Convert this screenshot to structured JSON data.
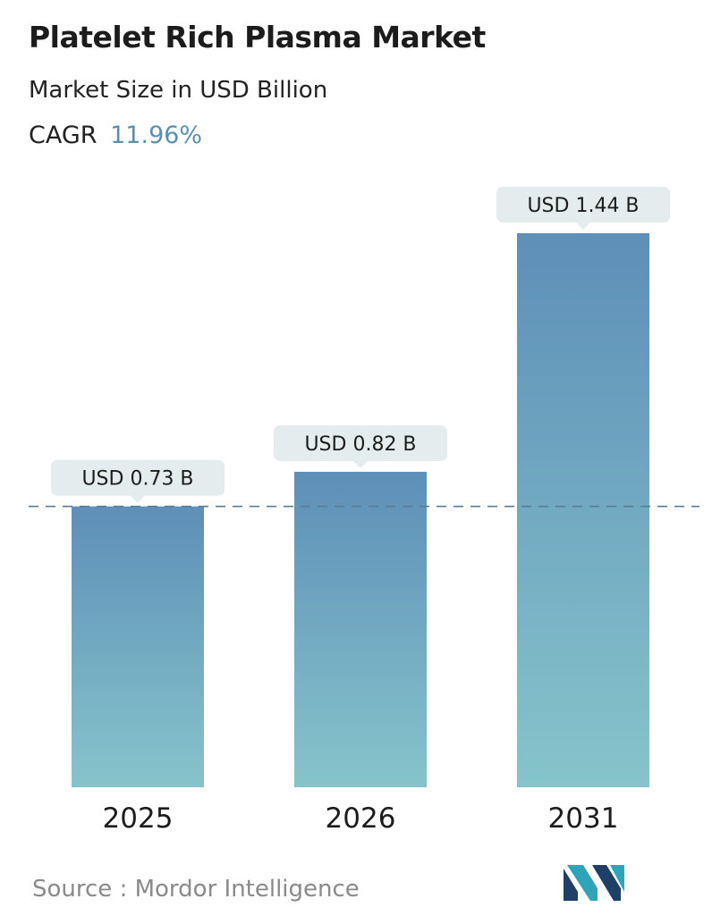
{
  "header": {
    "title": "Platelet Rich Plasma Market",
    "subtitle": "Market Size in USD Billion",
    "cagr_label": "CAGR",
    "cagr_value": "11.96%"
  },
  "chart_data": {
    "type": "bar",
    "categories": [
      "2025",
      "2026",
      "2031"
    ],
    "values": [
      0.73,
      0.82,
      1.44
    ],
    "data_labels": [
      "USD 0.73 B",
      "USD 0.82 B",
      "USD 1.44 B"
    ],
    "title": "Platelet Rich Plasma Market",
    "subtitle": "Market Size in USD Billion",
    "ylim": [
      0,
      1.44
    ],
    "grid": false,
    "reference_line": 0.73,
    "colors": {
      "bar_top": "#5e8fb8",
      "bar_bottom": "#86c4cb",
      "label_bg": "#e4ecee",
      "dashed_line": "#5a7d94"
    }
  },
  "footer": {
    "source": "Source :  Mordor Intelligence"
  },
  "logo": {
    "icon": "mordor-intelligence-logo-icon",
    "colors": [
      "#1e3f66",
      "#2fa3b8"
    ]
  }
}
